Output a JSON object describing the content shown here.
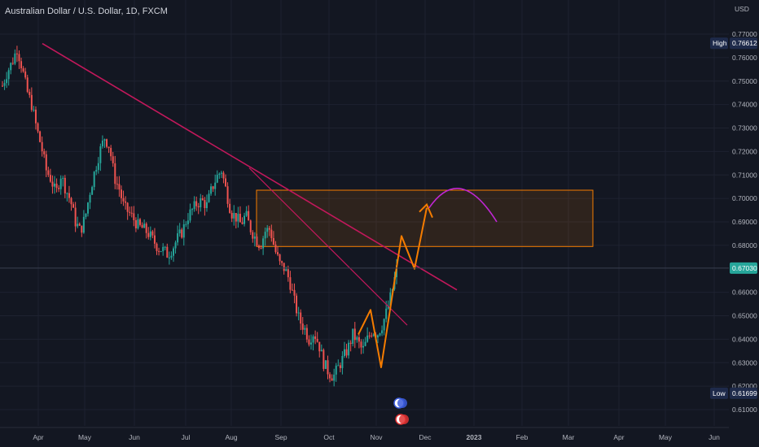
{
  "header": {
    "title": "Australian Dollar / U.S. Dollar, 1D, FXCM"
  },
  "chart_data": {
    "type": "candlestick",
    "currency_label": "USD",
    "x_ticks": [
      "Apr",
      "May",
      "Jun",
      "Jul",
      "Aug",
      "Sep",
      "Oct",
      "Nov",
      "Dec",
      "2023",
      "Feb",
      "Mar",
      "Apr",
      "May",
      "Jun"
    ],
    "y_ticks": [
      "0.77000",
      "0.76000",
      "0.75000",
      "0.74000",
      "0.73000",
      "0.72000",
      "0.71000",
      "0.70000",
      "0.69000",
      "0.68000",
      "0.66000",
      "0.65000",
      "0.64000",
      "0.63000",
      "0.62000",
      "0.61000"
    ],
    "ylim": [
      0.605,
      0.775
    ],
    "price_labels": {
      "high": {
        "label": "High",
        "value": "0.76612"
      },
      "low": {
        "label": "Low",
        "value": "0.61699"
      },
      "current": {
        "value": "0.67030"
      }
    },
    "price_path": [
      0.748,
      0.754,
      0.758,
      0.764,
      0.756,
      0.746,
      0.74,
      0.73,
      0.722,
      0.712,
      0.708,
      0.702,
      0.71,
      0.704,
      0.699,
      0.69,
      0.686,
      0.692,
      0.703,
      0.712,
      0.72,
      0.726,
      0.722,
      0.709,
      0.704,
      0.696,
      0.694,
      0.691,
      0.688,
      0.687,
      0.685,
      0.682,
      0.679,
      0.678,
      0.676,
      0.679,
      0.683,
      0.686,
      0.692,
      0.695,
      0.698,
      0.699,
      0.697,
      0.704,
      0.709,
      0.712,
      0.703,
      0.694,
      0.692,
      0.689,
      0.693,
      0.687,
      0.683,
      0.68,
      0.686,
      0.687,
      0.678,
      0.672,
      0.67,
      0.665,
      0.656,
      0.648,
      0.645,
      0.64,
      0.643,
      0.638,
      0.63,
      0.626,
      0.624,
      0.628,
      0.632,
      0.636,
      0.642,
      0.639,
      0.635,
      0.64,
      0.644,
      0.642,
      0.646,
      0.652,
      0.66,
      0.67
    ],
    "overlays": {
      "trendlines": [
        {
          "from": [
            "Apr",
            0.766
          ],
          "to": [
            "Dec",
            0.661
          ]
        },
        {
          "from": [
            "Aug",
            0.713
          ],
          "to": [
            "Nov",
            0.646
          ]
        }
      ],
      "zone": {
        "top": 0.7035,
        "bottom": 0.6795
      },
      "projection_path": [
        0.6525,
        0.628,
        0.684,
        0.67,
        0.696
      ],
      "projection_arc": [
        0.696,
        0.7065,
        0.69
      ]
    },
    "color_up": "#26a69a",
    "color_down": "#ef5350"
  }
}
